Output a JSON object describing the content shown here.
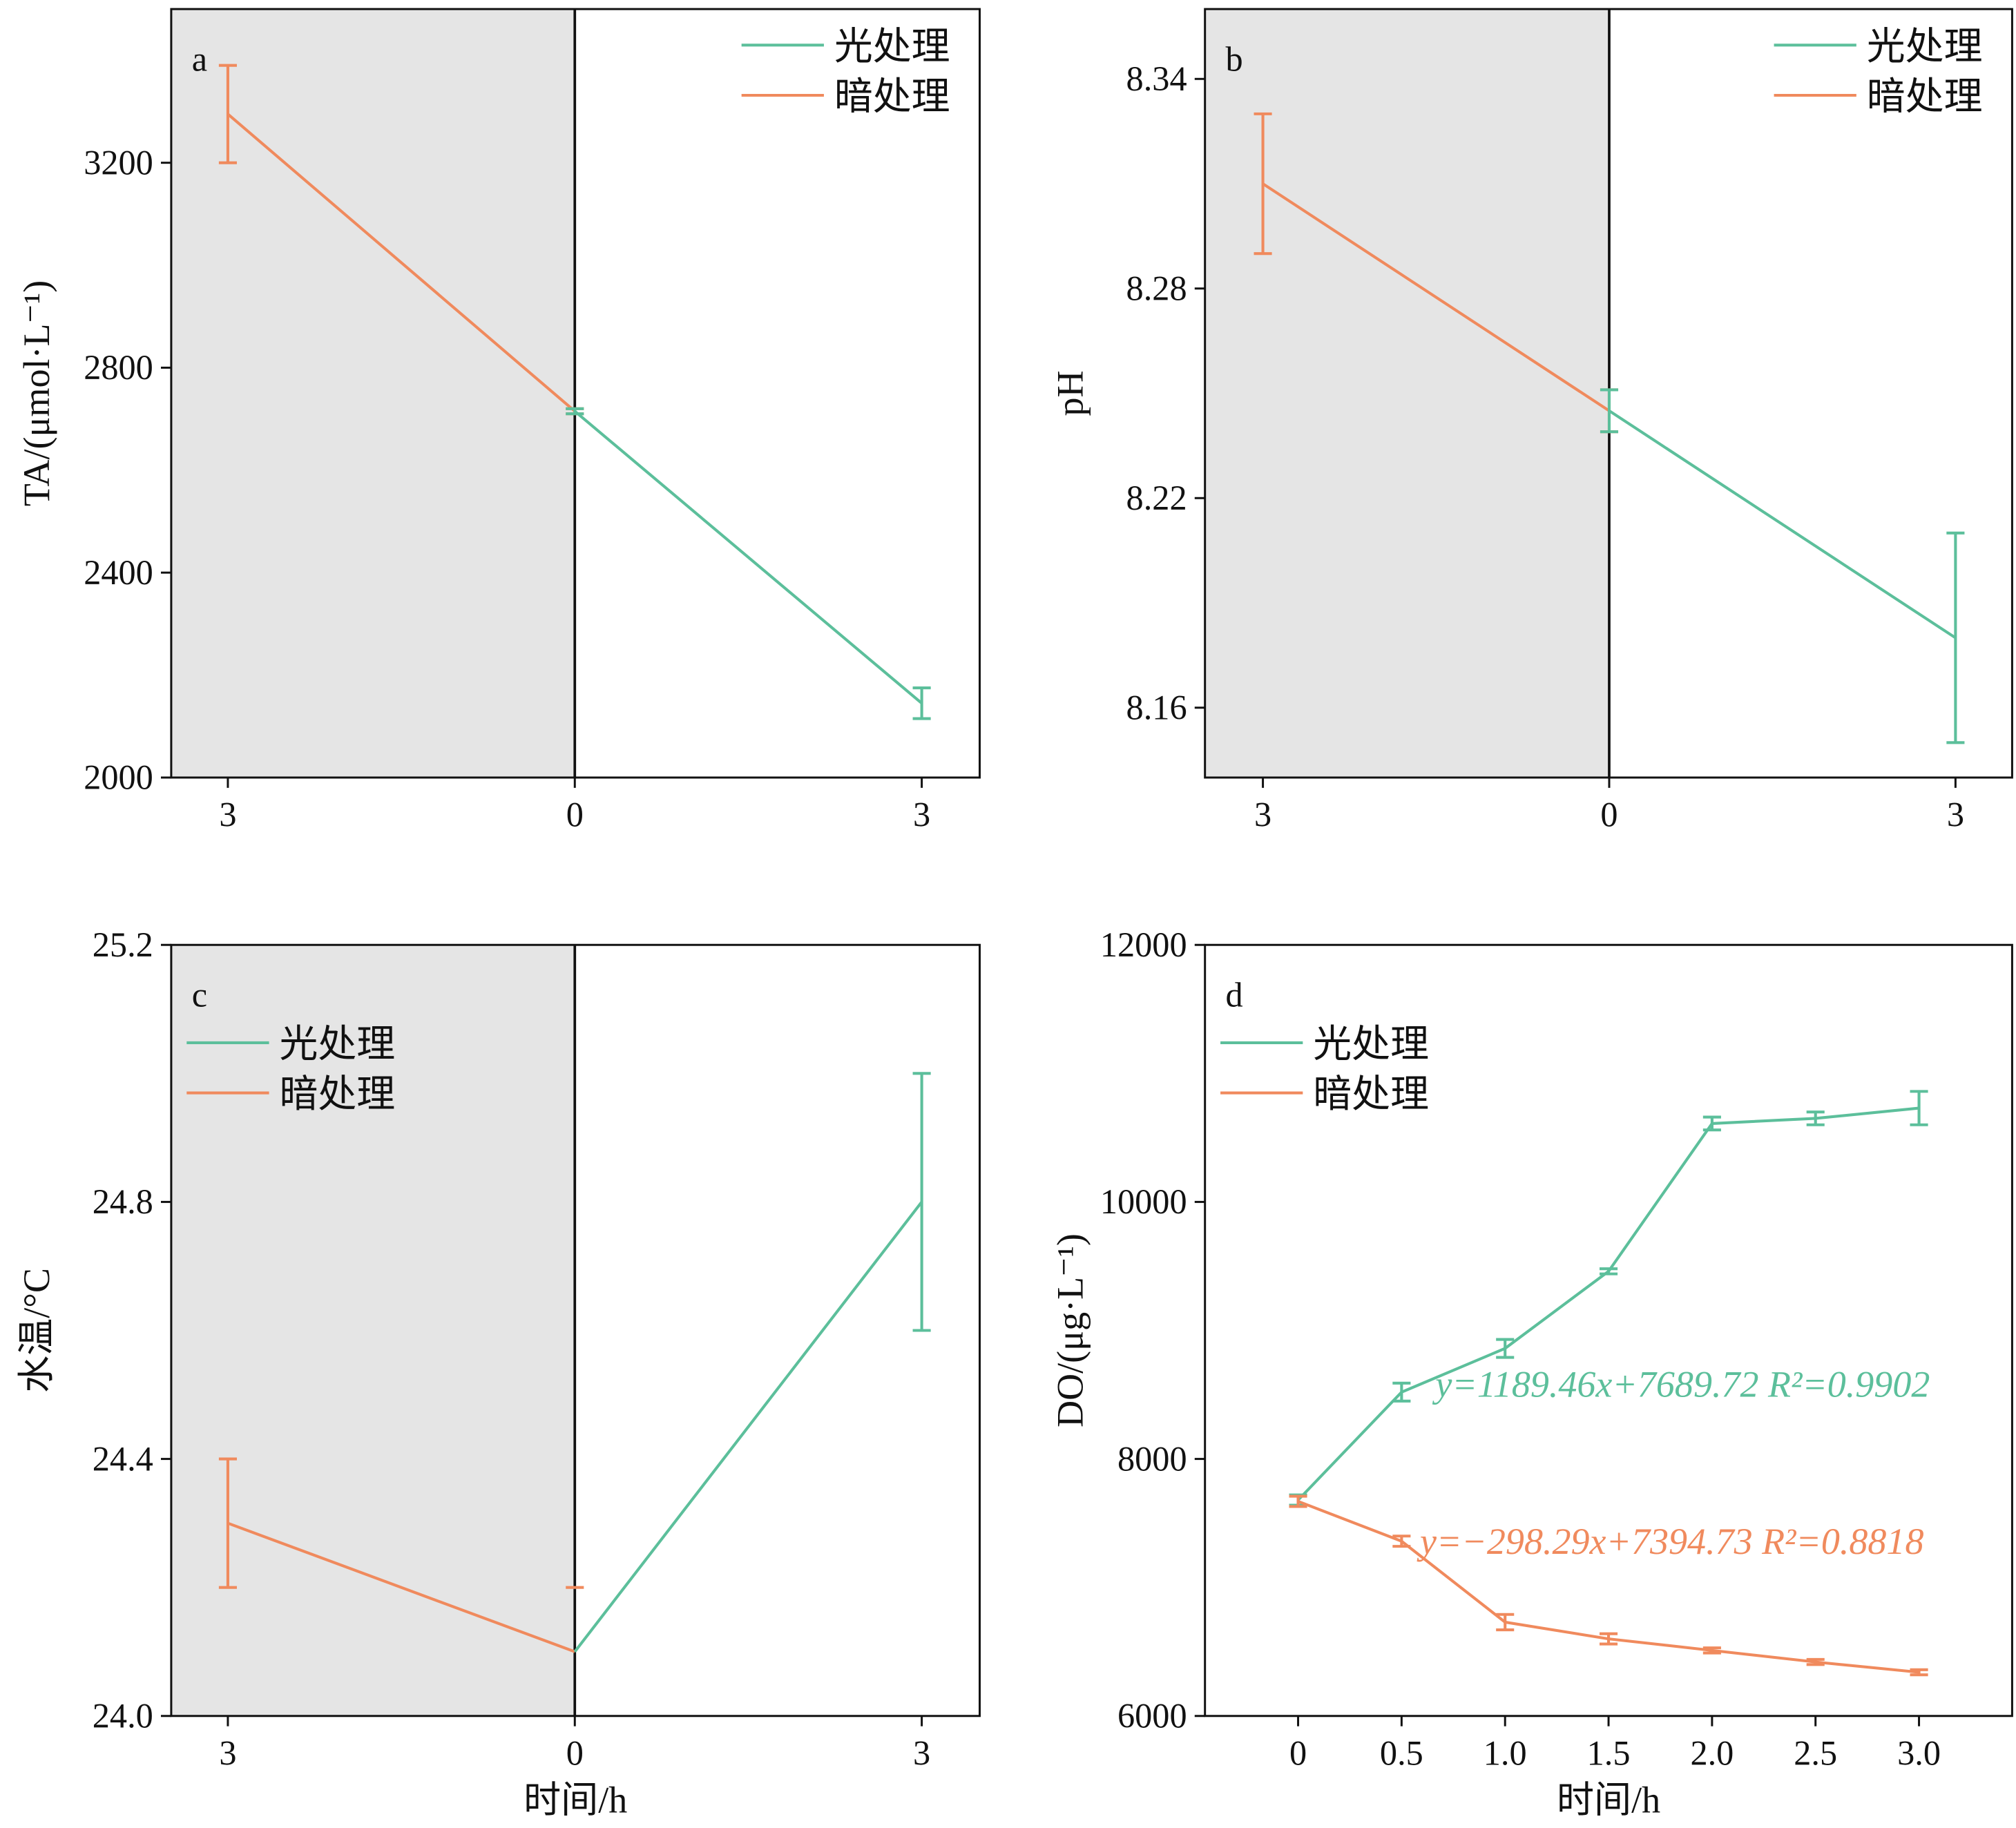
{
  "colors": {
    "light": "#5cbf9b",
    "dark": "#f08a5d",
    "shade": "#e5e5e5",
    "axis": "#111111"
  },
  "legend": {
    "light_label": "光处理",
    "dark_label": "暗处理"
  },
  "xlabel_bottom": "时间/h",
  "chart_data": [
    {
      "panel": "a",
      "type": "line",
      "ylabel": "TA/(μmol·L⁻¹)",
      "xlabel": "",
      "ylim": [
        2000,
        3500
      ],
      "yticks": [
        2000,
        2400,
        2800,
        3200
      ],
      "x_tick_labels": [
        "3",
        "0",
        "3"
      ],
      "legend_placement": "top-right",
      "shaded_region": "dark period (3 h to 0)",
      "series": [
        {
          "name": "暗处理",
          "x": [
            -3,
            0
          ],
          "y": [
            3295,
            2715
          ],
          "err": [
            95,
            5
          ]
        },
        {
          "name": "光处理",
          "x": [
            0,
            3
          ],
          "y": [
            2715,
            2145
          ],
          "err": [
            5,
            30
          ]
        }
      ]
    },
    {
      "panel": "b",
      "type": "line",
      "ylabel": "pH",
      "xlabel": "",
      "ylim": [
        8.14,
        8.36
      ],
      "yticks": [
        8.16,
        8.22,
        8.28,
        8.34
      ],
      "x_tick_labels": [
        "3",
        "0",
        "3"
      ],
      "legend_placement": "top-right",
      "shaded_region": "dark period (3 h to 0)",
      "series": [
        {
          "name": "暗处理",
          "x": [
            -3,
            0
          ],
          "y": [
            8.31,
            8.245
          ],
          "err": [
            0.02,
            0.006
          ]
        },
        {
          "name": "光处理",
          "x": [
            0,
            3
          ],
          "y": [
            8.245,
            8.18
          ],
          "err": [
            0.006,
            0.03
          ]
        }
      ]
    },
    {
      "panel": "c",
      "type": "line",
      "ylabel": "水温/°C",
      "xlabel": "时间/h",
      "ylim": [
        24.0,
        25.2
      ],
      "yticks": [
        24.0,
        24.4,
        24.8,
        25.2
      ],
      "x_tick_labels": [
        "3",
        "0",
        "3"
      ],
      "legend_placement": "top-left",
      "shaded_region": "dark period (3 h to 0)",
      "series": [
        {
          "name": "暗处理",
          "x": [
            -3,
            0
          ],
          "y": [
            24.3,
            24.1
          ],
          "err": [
            0.1,
            0.0
          ]
        },
        {
          "name": "光处理",
          "x": [
            0,
            3
          ],
          "y": [
            24.1,
            24.8
          ],
          "err": [
            0.0,
            0.2
          ]
        }
      ],
      "extra_marks": [
        {
          "x": 0,
          "y": 24.2,
          "type": "tick"
        }
      ]
    },
    {
      "panel": "d",
      "type": "line",
      "ylabel": "DO/(μg·L⁻¹)",
      "xlabel": "时间/h",
      "ylim": [
        6000,
        12000
      ],
      "yticks": [
        6000,
        8000,
        10000,
        12000
      ],
      "xlim": [
        -0.45,
        3.45
      ],
      "xticks": [
        0,
        0.5,
        1.0,
        1.5,
        2.0,
        2.5,
        3.0
      ],
      "x_tick_labels": [
        "0",
        "0.5",
        "1.0",
        "1.5",
        "2.0",
        "2.5",
        "3.0"
      ],
      "legend_placement": "top-left",
      "series": [
        {
          "name": "光处理",
          "x": [
            0,
            0.5,
            1.0,
            1.5,
            2.0,
            2.5,
            3.0
          ],
          "y": [
            7680,
            8520,
            8860,
            9460,
            10610,
            10650,
            10730
          ],
          "err": [
            40,
            70,
            70,
            20,
            50,
            50,
            130
          ]
        },
        {
          "name": "暗处理",
          "x": [
            0,
            0.5,
            1.0,
            1.5,
            2.0,
            2.5,
            3.0
          ],
          "y": [
            7670,
            7360,
            6730,
            6600,
            6510,
            6420,
            6340
          ],
          "err": [
            40,
            40,
            60,
            40,
            20,
            20,
            20
          ]
        }
      ],
      "annotations": [
        {
          "series": "光处理",
          "text": "y=1189.46x+7689.72 R²=0.9902"
        },
        {
          "series": "暗处理",
          "text": "y=−298.29x+7394.73 R²=0.8818"
        }
      ]
    }
  ]
}
